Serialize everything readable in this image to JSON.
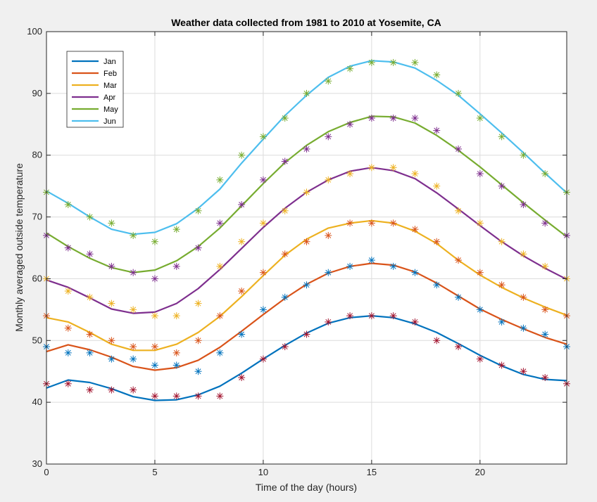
{
  "chart_data": {
    "type": "line",
    "title": "Weather data collected from 1981 to 2010 at Yosemite, CA",
    "xlabel": "Time of the day (hours)",
    "ylabel": "Monthly averaged outside temperature",
    "xlim": [
      0,
      24
    ],
    "ylim": [
      30,
      100
    ],
    "xticks": [
      0,
      5,
      10,
      15,
      20
    ],
    "yticks": [
      30,
      40,
      50,
      60,
      70,
      80,
      90,
      100
    ],
    "grid": true,
    "legend_position": "top-left",
    "series": [
      {
        "name": "Jan",
        "line_color": "#0072BD",
        "marker_color": "#A2142F",
        "fit": [
          42.3,
          43.6,
          43.2,
          42.2,
          40.9,
          40.3,
          40.4,
          41.2,
          42.6,
          44.7,
          47.0,
          49.2,
          51.2,
          52.8,
          53.7,
          54.0,
          53.7,
          52.7,
          51.3,
          49.5,
          47.6,
          45.9,
          44.5,
          43.7,
          43.5
        ],
        "measured": [
          43,
          43,
          42,
          42,
          42,
          41,
          41,
          41,
          41,
          44,
          47,
          49,
          51,
          53,
          54,
          54,
          54,
          53,
          50,
          49,
          47,
          46,
          45,
          44,
          43
        ]
      },
      {
        "name": "Feb",
        "line_color": "#D95319",
        "marker_color": "#0072BD",
        "fit": [
          48.2,
          49.3,
          48.5,
          47.3,
          45.8,
          45.2,
          45.6,
          46.8,
          48.9,
          51.5,
          54.2,
          56.8,
          59.1,
          60.9,
          62.0,
          62.5,
          62.2,
          61.1,
          59.3,
          57.2,
          55.1,
          53.4,
          51.9,
          50.5,
          49.4
        ],
        "measured": [
          49,
          48,
          48,
          47,
          47,
          46,
          46,
          45,
          48,
          51,
          55,
          57,
          59,
          61,
          62,
          63,
          62,
          61,
          59,
          57,
          55,
          53,
          52,
          51,
          49
        ]
      },
      {
        "name": "Mar",
        "line_color": "#EDB120",
        "marker_color": "#D95319",
        "fit": [
          53.7,
          53.0,
          51.3,
          49.4,
          48.4,
          48.4,
          49.4,
          51.3,
          53.9,
          57.1,
          60.5,
          63.8,
          66.4,
          68.2,
          69.0,
          69.4,
          69.0,
          67.7,
          65.7,
          63.0,
          60.6,
          58.6,
          56.9,
          55.4,
          54.1
        ],
        "measured": [
          54,
          52,
          51,
          50,
          49,
          49,
          48,
          50,
          54,
          58,
          61,
          64,
          66,
          67,
          69,
          69,
          69,
          68,
          66,
          63,
          61,
          59,
          57,
          55,
          54
        ]
      },
      {
        "name": "Apr",
        "line_color": "#7E2F8E",
        "marker_color": "#EDB120",
        "fit": [
          59.8,
          58.6,
          56.9,
          55.1,
          54.4,
          54.6,
          56.0,
          58.4,
          61.5,
          64.9,
          68.3,
          71.4,
          74.0,
          76.0,
          77.4,
          78.0,
          77.5,
          76.2,
          73.9,
          71.3,
          68.6,
          66.0,
          63.7,
          61.7,
          59.9
        ],
        "measured": [
          60,
          58,
          57,
          56,
          55,
          54,
          54,
          56,
          62,
          66,
          69,
          71,
          74,
          76,
          77,
          78,
          78,
          77,
          75,
          71,
          69,
          66,
          64,
          62,
          60
        ]
      },
      {
        "name": "May",
        "line_color": "#77AC30",
        "marker_color": "#7E2F8E",
        "fit": [
          67.4,
          65.2,
          63.3,
          61.8,
          61.0,
          61.4,
          62.9,
          65.2,
          68.2,
          71.8,
          75.4,
          78.8,
          81.6,
          83.8,
          85.3,
          86.3,
          86.2,
          85.2,
          83.2,
          80.8,
          78.1,
          75.2,
          72.3,
          69.5,
          66.8
        ],
        "measured": [
          67,
          65,
          64,
          62,
          61,
          60,
          62,
          65,
          69,
          72,
          76,
          79,
          81,
          83,
          85,
          86,
          86,
          86,
          84,
          81,
          77,
          75,
          72,
          69,
          67
        ]
      },
      {
        "name": "Jun",
        "line_color": "#4DBEEE",
        "marker_color": "#77AC30",
        "fit": [
          74.2,
          72.2,
          70.0,
          68.0,
          67.2,
          67.5,
          68.9,
          71.4,
          74.5,
          78.7,
          82.6,
          86.4,
          89.7,
          92.6,
          94.4,
          95.3,
          95.1,
          94.1,
          92.1,
          89.7,
          86.7,
          83.6,
          80.4,
          77.1,
          73.9
        ],
        "measured": [
          74,
          72,
          70,
          69,
          67,
          66,
          68,
          71,
          76,
          80,
          83,
          86,
          90,
          92,
          94,
          95,
          95,
          95,
          93,
          90,
          86,
          83,
          80,
          77,
          74
        ]
      }
    ]
  }
}
